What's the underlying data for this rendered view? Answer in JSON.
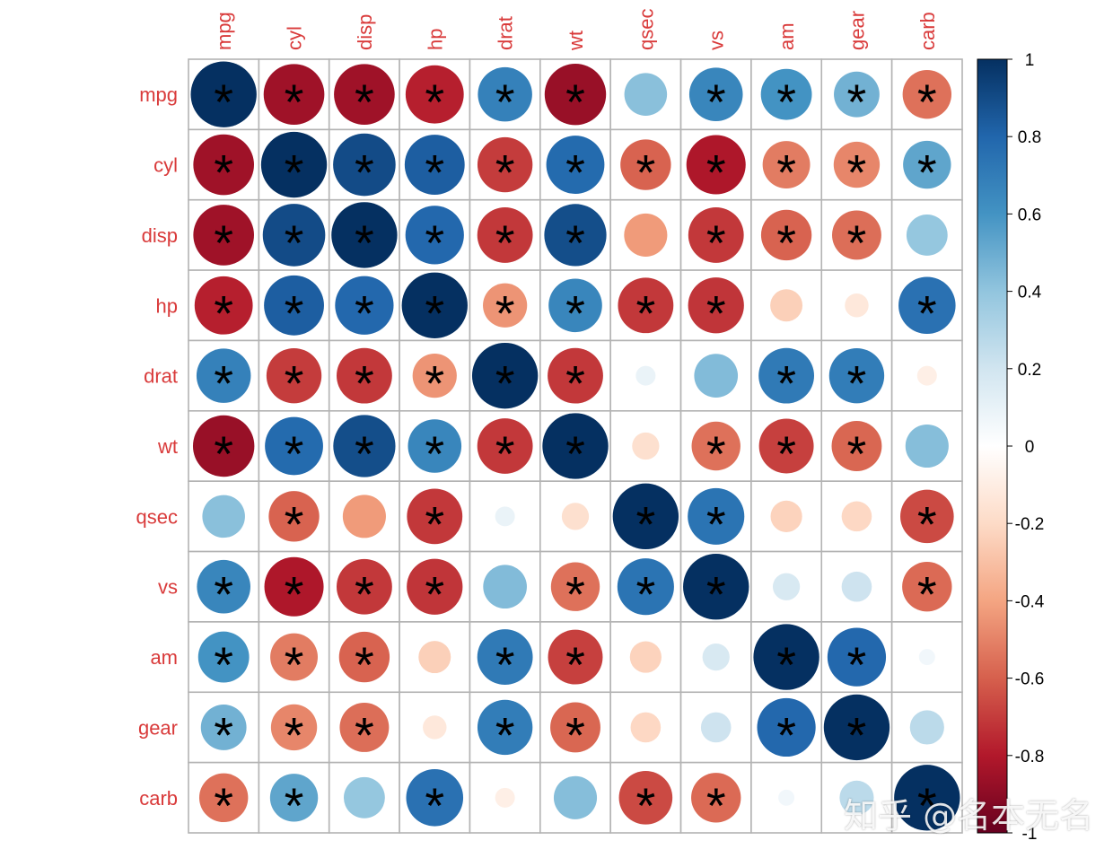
{
  "chart_data": {
    "type": "heatmap",
    "title": "",
    "variables": [
      "mpg",
      "cyl",
      "disp",
      "hp",
      "drat",
      "wt",
      "qsec",
      "vs",
      "am",
      "gear",
      "carb"
    ],
    "correlation": [
      [
        1.0,
        -0.85,
        -0.85,
        -0.78,
        0.68,
        -0.87,
        0.42,
        0.66,
        0.6,
        0.48,
        -0.55
      ],
      [
        -0.85,
        1.0,
        0.9,
        0.83,
        -0.7,
        0.78,
        -0.59,
        -0.81,
        -0.52,
        -0.49,
        0.53
      ],
      [
        -0.85,
        0.9,
        1.0,
        0.79,
        -0.71,
        0.89,
        -0.43,
        -0.71,
        -0.59,
        -0.56,
        0.39
      ],
      [
        -0.78,
        0.83,
        0.79,
        1.0,
        -0.45,
        0.66,
        -0.71,
        -0.72,
        -0.24,
        -0.13,
        0.75
      ],
      [
        0.68,
        -0.7,
        -0.71,
        -0.45,
        1.0,
        -0.71,
        0.09,
        0.44,
        0.71,
        0.7,
        -0.09
      ],
      [
        -0.87,
        0.78,
        0.89,
        0.66,
        -0.71,
        1.0,
        -0.17,
        -0.55,
        -0.69,
        -0.58,
        0.43
      ],
      [
        0.42,
        -0.59,
        -0.43,
        -0.71,
        0.09,
        -0.17,
        1.0,
        0.74,
        -0.23,
        -0.21,
        -0.66
      ],
      [
        0.66,
        -0.81,
        -0.71,
        -0.72,
        0.44,
        -0.55,
        0.74,
        1.0,
        0.17,
        0.21,
        -0.57
      ],
      [
        0.6,
        -0.52,
        -0.59,
        -0.24,
        0.71,
        -0.69,
        -0.23,
        0.17,
        1.0,
        0.79,
        0.06
      ],
      [
        0.48,
        -0.49,
        -0.56,
        -0.13,
        0.7,
        -0.58,
        -0.21,
        0.21,
        0.79,
        1.0,
        0.27
      ],
      [
        -0.55,
        0.53,
        0.39,
        0.75,
        -0.09,
        0.43,
        -0.66,
        -0.57,
        0.06,
        0.27,
        1.0
      ]
    ],
    "significant": [
      [
        1,
        1,
        1,
        1,
        1,
        1,
        0,
        1,
        1,
        1,
        1
      ],
      [
        1,
        1,
        1,
        1,
        1,
        1,
        1,
        1,
        1,
        1,
        1
      ],
      [
        1,
        1,
        1,
        1,
        1,
        1,
        0,
        1,
        1,
        1,
        0
      ],
      [
        1,
        1,
        1,
        1,
        1,
        1,
        1,
        1,
        0,
        0,
        1
      ],
      [
        1,
        1,
        1,
        1,
        1,
        1,
        0,
        0,
        1,
        1,
        0
      ],
      [
        1,
        1,
        1,
        1,
        1,
        1,
        0,
        1,
        1,
        1,
        0
      ],
      [
        0,
        1,
        0,
        1,
        0,
        0,
        1,
        1,
        0,
        0,
        1
      ],
      [
        1,
        1,
        1,
        1,
        0,
        1,
        1,
        1,
        0,
        0,
        1
      ],
      [
        1,
        1,
        1,
        0,
        1,
        1,
        0,
        0,
        1,
        1,
        0
      ],
      [
        1,
        1,
        1,
        0,
        1,
        1,
        0,
        0,
        1,
        1,
        0
      ],
      [
        1,
        1,
        0,
        1,
        0,
        0,
        1,
        1,
        0,
        0,
        1
      ]
    ],
    "significance_marker": "*",
    "legend": {
      "min": -1,
      "max": 1,
      "ticks": [
        "1",
        "0.8",
        "0.6",
        "0.4",
        "0.2",
        "0",
        "-0.2",
        "-0.4",
        "-0.6",
        "-0.8",
        "-1"
      ],
      "tick_values": [
        1,
        0.8,
        0.6,
        0.4,
        0.2,
        0,
        -0.2,
        -0.4,
        -0.6,
        -0.8,
        -1
      ],
      "placement": "right"
    },
    "colors": {
      "negative_extreme": "#67001f",
      "zero": "#ffffff",
      "positive_extreme": "#053061",
      "label": "#d93a3a",
      "grid": "#b3b3b3"
    },
    "cell_marker": "circle"
  },
  "watermark": "知乎 @名本无名"
}
